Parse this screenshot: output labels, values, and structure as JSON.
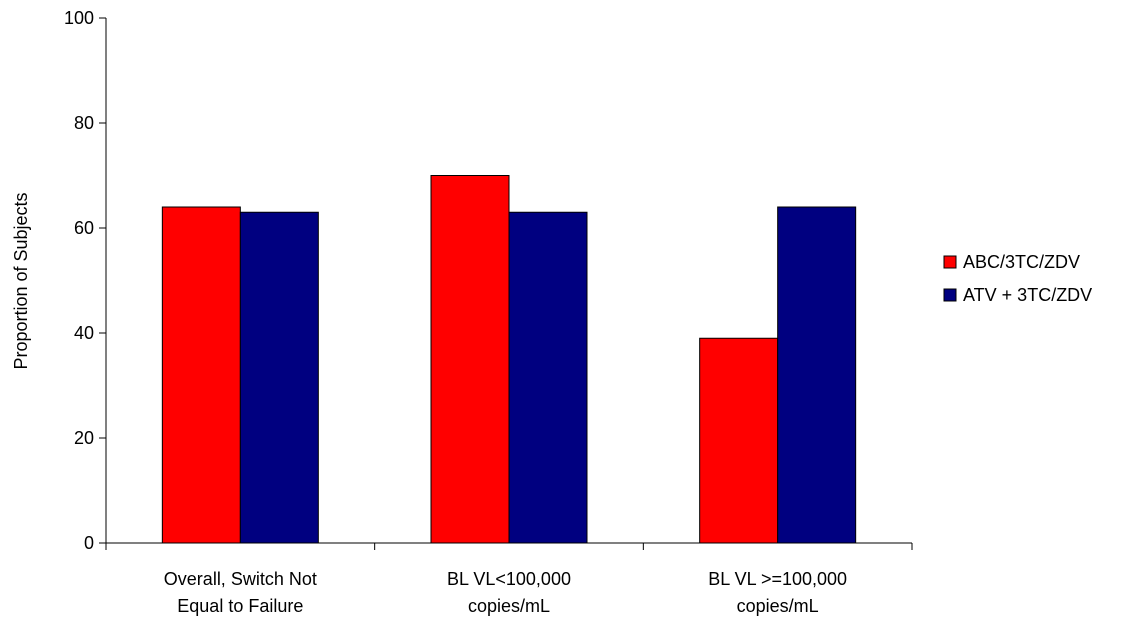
{
  "chart_data": {
    "type": "bar",
    "title": "",
    "xlabel": "",
    "ylabel": "Proportion of Subjects",
    "ylim": [
      0,
      100
    ],
    "yticks": [
      0,
      20,
      40,
      60,
      80,
      100
    ],
    "categories": [
      [
        "Overall, Switch Not",
        "Equal to Failure"
      ],
      [
        "BL VL<100,000",
        "copies/mL"
      ],
      [
        "BL VL >=100,000",
        "copies/mL"
      ]
    ],
    "series": [
      {
        "name": "ABC/3TC/ZDV",
        "color": "#ff0000",
        "values": [
          64,
          70,
          39
        ]
      },
      {
        "name": "ATV + 3TC/ZDV",
        "color": "#000080",
        "values": [
          63,
          63,
          64
        ]
      }
    ],
    "grid": false,
    "legend_position": "right"
  }
}
